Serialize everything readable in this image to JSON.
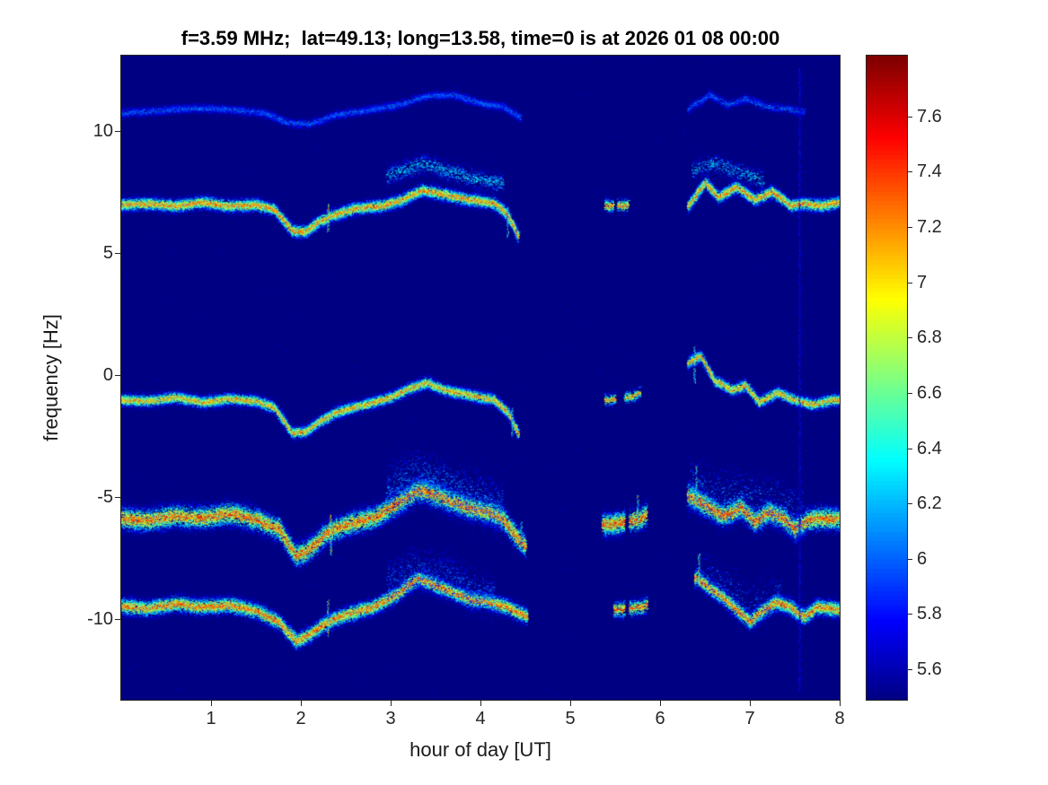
{
  "title": "f=3.59 MHz;  lat=49.13; long=13.58, time=0 is at 2026 01 08 00:00",
  "axes": {
    "xlabel": "hour of day [UT]",
    "ylabel": "frequency [Hz]",
    "xlim": [
      0,
      8
    ],
    "ylim": [
      -13.3,
      13.1
    ],
    "x_ticks": [
      {
        "label": "1",
        "value": 1
      },
      {
        "label": "2",
        "value": 2
      },
      {
        "label": "3",
        "value": 3
      },
      {
        "label": "4",
        "value": 4
      },
      {
        "label": "5",
        "value": 5
      },
      {
        "label": "6",
        "value": 6
      },
      {
        "label": "7",
        "value": 7
      },
      {
        "label": "8",
        "value": 8
      }
    ],
    "y_ticks": [
      {
        "label": "10",
        "value": 10
      },
      {
        "label": "5",
        "value": 5
      },
      {
        "label": "0",
        "value": 0
      },
      {
        "label": "-5",
        "value": -5
      },
      {
        "label": "-10",
        "value": -10
      }
    ]
  },
  "colorbar": {
    "colormap": "jet",
    "range": [
      5.49,
      7.82
    ],
    "ticks": [
      {
        "label": "7.6",
        "value": 7.6
      },
      {
        "label": "7.4",
        "value": 7.4
      },
      {
        "label": "7.2",
        "value": 7.2
      },
      {
        "label": "7",
        "value": 7.0
      },
      {
        "label": "6.8",
        "value": 6.8
      },
      {
        "label": "6.6",
        "value": 6.6
      },
      {
        "label": "6.4",
        "value": 6.4
      },
      {
        "label": "6.2",
        "value": 6.2
      },
      {
        "label": "6",
        "value": 6.0
      },
      {
        "label": "5.8",
        "value": 5.8
      },
      {
        "label": "5.6",
        "value": 5.6
      }
    ]
  },
  "chart_data": {
    "type": "heatmap",
    "title": "f=3.59 MHz;  lat=49.13; long=13.58, time=0 is at 2026 01 08 00:00",
    "xlabel": "hour of day [UT]",
    "ylabel": "frequency [Hz]",
    "xlim": [
      0,
      8
    ],
    "ylim": [
      -13.3,
      13.1
    ],
    "colormap": "jet",
    "color_range": [
      5.49,
      7.82
    ],
    "background_value": 5.49,
    "gaps_hours": [
      [
        4.45,
        5.35
      ],
      [
        5.85,
        6.3
      ]
    ],
    "traces": [
      {
        "name": "upper-faint-trace",
        "core_value": 6.15,
        "sigma_hz": 0.12,
        "density": 5,
        "core_line": false,
        "points": [
          [
            0,
            10.75
          ],
          [
            0.4,
            10.85
          ],
          [
            0.8,
            10.95
          ],
          [
            1.2,
            10.9
          ],
          [
            1.6,
            10.75
          ],
          [
            1.85,
            10.35
          ],
          [
            2.1,
            10.3
          ],
          [
            2.4,
            10.7
          ],
          [
            2.8,
            10.9
          ],
          [
            3.1,
            11.1
          ],
          [
            3.4,
            11.45
          ],
          [
            3.7,
            11.5
          ],
          [
            4.0,
            11.15
          ],
          [
            4.25,
            11.0
          ],
          [
            4.45,
            10.55
          ],
          [
            6.3,
            10.9
          ],
          [
            6.55,
            11.5
          ],
          [
            6.75,
            11.1
          ],
          [
            6.95,
            11.35
          ],
          [
            7.15,
            11.05
          ],
          [
            7.35,
            10.95
          ],
          [
            7.6,
            10.8
          ],
          [
            8,
            10.7
          ]
        ],
        "segments": [
          [
            0,
            4.45,
            1.0
          ],
          [
            6.3,
            7.6,
            0.75
          ]
        ]
      },
      {
        "name": "plus7-trace",
        "core_value": 7.5,
        "sigma_hz": 0.16,
        "density": 10,
        "core_line": true,
        "points": [
          [
            0,
            7.0
          ],
          [
            0.3,
            7.05
          ],
          [
            0.6,
            6.95
          ],
          [
            0.9,
            7.1
          ],
          [
            1.2,
            6.95
          ],
          [
            1.5,
            7.0
          ],
          [
            1.7,
            6.8
          ],
          [
            1.9,
            5.95
          ],
          [
            2.05,
            5.9
          ],
          [
            2.2,
            6.3
          ],
          [
            2.35,
            6.55
          ],
          [
            2.6,
            6.85
          ],
          [
            2.9,
            6.95
          ],
          [
            3.1,
            7.15
          ],
          [
            3.35,
            7.6
          ],
          [
            3.55,
            7.45
          ],
          [
            3.8,
            7.25
          ],
          [
            4.0,
            7.15
          ],
          [
            4.15,
            7.05
          ],
          [
            4.3,
            6.6
          ],
          [
            4.42,
            5.7
          ],
          [
            5.0,
            7.0
          ],
          [
            5.6,
            6.95
          ],
          [
            6.3,
            6.9
          ],
          [
            6.5,
            7.9
          ],
          [
            6.65,
            7.3
          ],
          [
            6.85,
            7.75
          ],
          [
            7.05,
            7.2
          ],
          [
            7.25,
            7.55
          ],
          [
            7.45,
            6.95
          ],
          [
            7.6,
            7.05
          ],
          [
            7.8,
            6.95
          ],
          [
            8,
            7.1
          ]
        ],
        "segments": [
          [
            0,
            4.42,
            1.0
          ],
          [
            5.38,
            5.48,
            0.65
          ],
          [
            5.52,
            5.64,
            0.6
          ],
          [
            6.3,
            8,
            1.0
          ]
        ]
      },
      {
        "name": "plus7-echo-trace",
        "core_value": 6.5,
        "sigma_hz": 0.25,
        "density": 4,
        "core_line": false,
        "points": [
          [
            2.9,
            8.1
          ],
          [
            3.35,
            8.7
          ],
          [
            3.6,
            8.4
          ],
          [
            3.9,
            8.1
          ],
          [
            4.2,
            7.9
          ],
          [
            6.35,
            8.4
          ],
          [
            6.6,
            8.7
          ],
          [
            6.9,
            8.3
          ],
          [
            7.15,
            8.0
          ]
        ],
        "segments": [
          [
            2.95,
            4.25,
            1.0
          ],
          [
            6.35,
            7.15,
            0.7
          ]
        ]
      },
      {
        "name": "near-zero-trace",
        "core_value": 7.4,
        "sigma_hz": 0.15,
        "density": 9,
        "core_line": true,
        "points": [
          [
            0,
            -1.0
          ],
          [
            0.3,
            -1.05
          ],
          [
            0.6,
            -0.9
          ],
          [
            0.9,
            -1.1
          ],
          [
            1.2,
            -0.95
          ],
          [
            1.5,
            -1.05
          ],
          [
            1.7,
            -1.3
          ],
          [
            1.9,
            -2.35
          ],
          [
            2.05,
            -2.3
          ],
          [
            2.2,
            -1.9
          ],
          [
            2.4,
            -1.5
          ],
          [
            2.7,
            -1.2
          ],
          [
            3.0,
            -0.9
          ],
          [
            3.2,
            -0.55
          ],
          [
            3.4,
            -0.3
          ],
          [
            3.6,
            -0.6
          ],
          [
            3.8,
            -0.75
          ],
          [
            4.0,
            -0.9
          ],
          [
            4.15,
            -1.0
          ],
          [
            4.3,
            -1.5
          ],
          [
            4.42,
            -2.4
          ],
          [
            5.0,
            -1.0
          ],
          [
            5.45,
            -1.0
          ],
          [
            5.7,
            -0.85
          ],
          [
            6.3,
            0.5
          ],
          [
            6.45,
            0.8
          ],
          [
            6.6,
            -0.2
          ],
          [
            6.8,
            -0.6
          ],
          [
            6.95,
            -0.4
          ],
          [
            7.1,
            -1.1
          ],
          [
            7.3,
            -0.7
          ],
          [
            7.5,
            -1.0
          ],
          [
            7.7,
            -1.2
          ],
          [
            7.9,
            -1.0
          ],
          [
            8,
            -1.0
          ]
        ],
        "segments": [
          [
            0,
            4.42,
            1.0
          ],
          [
            5.38,
            5.5,
            0.6
          ],
          [
            5.6,
            5.78,
            0.55
          ],
          [
            6.3,
            8,
            0.9
          ]
        ]
      },
      {
        "name": "minus6-trace",
        "core_value": 7.6,
        "sigma_hz": 0.28,
        "density": 13,
        "core_line": true,
        "points": [
          [
            0,
            -5.85
          ],
          [
            0.3,
            -5.95
          ],
          [
            0.6,
            -5.75
          ],
          [
            0.9,
            -5.85
          ],
          [
            1.2,
            -5.65
          ],
          [
            1.5,
            -5.9
          ],
          [
            1.75,
            -6.3
          ],
          [
            1.95,
            -7.4
          ],
          [
            2.1,
            -7.1
          ],
          [
            2.3,
            -6.4
          ],
          [
            2.5,
            -6.1
          ],
          [
            2.8,
            -5.85
          ],
          [
            3.05,
            -5.3
          ],
          [
            3.3,
            -4.7
          ],
          [
            3.5,
            -4.9
          ],
          [
            3.7,
            -5.2
          ],
          [
            3.9,
            -5.45
          ],
          [
            4.1,
            -5.6
          ],
          [
            4.25,
            -5.9
          ],
          [
            4.4,
            -6.6
          ],
          [
            4.5,
            -7.0
          ],
          [
            5.0,
            -6.1
          ],
          [
            5.45,
            -6.1
          ],
          [
            5.75,
            -5.9
          ],
          [
            6.3,
            -4.9
          ],
          [
            6.5,
            -5.3
          ],
          [
            6.7,
            -5.75
          ],
          [
            6.9,
            -5.4
          ],
          [
            7.05,
            -6.0
          ],
          [
            7.2,
            -5.6
          ],
          [
            7.35,
            -5.8
          ],
          [
            7.5,
            -6.3
          ],
          [
            7.65,
            -5.9
          ],
          [
            7.8,
            -5.85
          ],
          [
            8,
            -5.9
          ]
        ],
        "segments": [
          [
            0,
            4.5,
            1.0
          ],
          [
            5.35,
            5.6,
            1.1
          ],
          [
            5.65,
            5.85,
            0.8
          ],
          [
            6.3,
            8,
            1.0
          ]
        ]
      },
      {
        "name": "minus6-halo",
        "core_value": 6.25,
        "sigma_hz": 0.75,
        "density": 5,
        "core_line": false,
        "points": [
          [
            2.9,
            -4.9
          ],
          [
            3.3,
            -4.1
          ],
          [
            3.6,
            -4.5
          ],
          [
            3.9,
            -5.0
          ],
          [
            4.2,
            -5.4
          ],
          [
            6.3,
            -4.5
          ],
          [
            6.6,
            -4.9
          ],
          [
            6.9,
            -5.0
          ],
          [
            7.2,
            -5.2
          ],
          [
            7.6,
            -5.8
          ]
        ],
        "segments": [
          [
            2.95,
            4.25,
            1.0
          ],
          [
            6.3,
            7.6,
            0.6
          ]
        ]
      },
      {
        "name": "minus9-trace",
        "core_value": 7.55,
        "sigma_hz": 0.2,
        "density": 11,
        "core_line": true,
        "points": [
          [
            0,
            -9.45
          ],
          [
            0.3,
            -9.55
          ],
          [
            0.6,
            -9.35
          ],
          [
            0.9,
            -9.5
          ],
          [
            1.2,
            -9.4
          ],
          [
            1.5,
            -9.65
          ],
          [
            1.75,
            -10.1
          ],
          [
            1.95,
            -10.9
          ],
          [
            2.1,
            -10.6
          ],
          [
            2.3,
            -10.1
          ],
          [
            2.5,
            -9.8
          ],
          [
            2.8,
            -9.5
          ],
          [
            3.05,
            -9.0
          ],
          [
            3.3,
            -8.3
          ],
          [
            3.5,
            -8.6
          ],
          [
            3.7,
            -8.9
          ],
          [
            3.9,
            -9.2
          ],
          [
            4.1,
            -9.3
          ],
          [
            4.3,
            -9.5
          ],
          [
            4.52,
            -9.9
          ],
          [
            5.0,
            -9.5
          ],
          [
            5.5,
            -9.6
          ],
          [
            5.78,
            -9.5
          ],
          [
            6.4,
            -8.3
          ],
          [
            6.55,
            -8.7
          ],
          [
            6.7,
            -9.1
          ],
          [
            6.85,
            -9.6
          ],
          [
            7.0,
            -10.1
          ],
          [
            7.15,
            -9.6
          ],
          [
            7.3,
            -9.3
          ],
          [
            7.45,
            -9.5
          ],
          [
            7.6,
            -9.9
          ],
          [
            7.75,
            -9.5
          ],
          [
            7.9,
            -9.55
          ],
          [
            8,
            -9.6
          ]
        ],
        "segments": [
          [
            0,
            4.52,
            1.0
          ],
          [
            5.48,
            5.6,
            0.7
          ],
          [
            5.65,
            5.85,
            0.65
          ],
          [
            6.38,
            8,
            1.0
          ]
        ]
      },
      {
        "name": "minus9-halo",
        "core_value": 6.15,
        "sigma_hz": 0.6,
        "density": 4,
        "core_line": false,
        "points": [
          [
            2.9,
            -8.6
          ],
          [
            3.3,
            -7.9
          ],
          [
            3.6,
            -8.2
          ],
          [
            3.9,
            -8.8
          ],
          [
            4.2,
            -9.1
          ],
          [
            6.4,
            -7.9
          ],
          [
            6.7,
            -8.6
          ],
          [
            7.0,
            -9.4
          ],
          [
            7.3,
            -8.9
          ]
        ],
        "segments": [
          [
            2.95,
            4.15,
            1.0
          ],
          [
            6.4,
            7.35,
            0.6
          ]
        ]
      }
    ],
    "streaks": [
      {
        "x": 2.3,
        "f0": 5.9,
        "f1": 7.05,
        "gain": 0.85
      },
      {
        "x": 2.33,
        "f0": -7.35,
        "f1": -5.7,
        "gain": 0.85
      },
      {
        "x": 2.3,
        "f0": -10.7,
        "f1": -9.2,
        "gain": 0.75
      },
      {
        "x": 4.3,
        "f0": 5.65,
        "f1": 6.9,
        "gain": 0.6
      },
      {
        "x": 4.35,
        "f0": -2.5,
        "f1": -1.3,
        "gain": 0.55
      },
      {
        "x": 4.45,
        "f0": -7.1,
        "f1": -6.0,
        "gain": 0.55
      },
      {
        "x": 5.75,
        "f0": -6.3,
        "f1": -4.9,
        "gain": 0.8
      },
      {
        "x": 6.38,
        "f0": -0.3,
        "f1": 1.2,
        "gain": 0.65
      },
      {
        "x": 6.4,
        "f0": -5.2,
        "f1": -3.7,
        "gain": 0.6
      },
      {
        "x": 6.43,
        "f0": -8.6,
        "f1": -7.3,
        "gain": 0.7
      },
      {
        "x": 7.55,
        "f0": -13.0,
        "f1": 12.6,
        "gain": 0.18
      }
    ]
  }
}
